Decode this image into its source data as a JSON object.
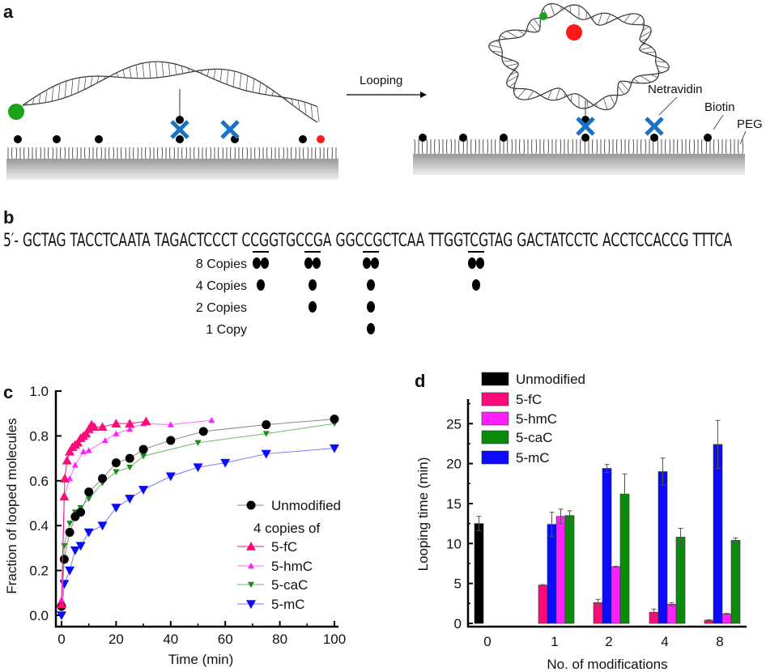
{
  "panels": {
    "a": {
      "label": "a",
      "arrow_label": "Looping",
      "netravidin": "Netravidin",
      "biotin": "Biotin",
      "peg": "PEG"
    },
    "b": {
      "label": "b",
      "sequence": "5′- GCTAG TACCTCAATA TAGACTCCCT CCGGTGCCGA GGCCGCTCAA TTGGTCGTAG GACTATCCTC ACCTCCACCG TTTCA",
      "copies": [
        {
          "label": "8 Copies",
          "sites": [
            2,
            2,
            2,
            2
          ]
        },
        {
          "label": "4 Copies",
          "sites": [
            1,
            1,
            1,
            1
          ]
        },
        {
          "label": "2 Copies",
          "sites": [
            0,
            1,
            1,
            0
          ]
        },
        {
          "label": "1 Copy",
          "sites": [
            0,
            0,
            1,
            0
          ]
        }
      ]
    },
    "c": {
      "label": "c"
    },
    "d": {
      "label": "d"
    }
  },
  "chart_data": [
    {
      "type": "line",
      "xlabel": "Time (min)",
      "ylabel": "Fraction of looped molecules",
      "xlim": [
        -2,
        100
      ],
      "ylim": [
        -0.05,
        1.0
      ],
      "xticks": [
        "0",
        "20",
        "40",
        "60",
        "80",
        "100"
      ],
      "yticks": [
        "0.0",
        "0.2",
        "0.4",
        "0.6",
        "0.8",
        "1.0"
      ],
      "legend_placement": "lower-right",
      "legend_subtitle": "4 copies of",
      "series": [
        {
          "name": "Unmodified",
          "color": "#000000",
          "line": "#888888",
          "marker": "circle",
          "x": [
            0,
            1,
            3,
            5,
            7,
            10,
            15,
            20,
            25,
            30,
            40,
            52,
            75,
            100
          ],
          "y": [
            0.04,
            0.25,
            0.37,
            0.44,
            0.46,
            0.55,
            0.61,
            0.68,
            0.7,
            0.74,
            0.78,
            0.82,
            0.85,
            0.875
          ]
        },
        {
          "name": "5-fC",
          "color": "#ff0a78",
          "line": "#ff0a78",
          "marker": "triangle-up",
          "x": [
            0,
            1,
            1.2,
            2,
            3,
            4,
            5,
            6,
            7,
            8,
            9,
            10,
            11,
            12,
            15,
            20,
            25,
            31
          ],
          "y": [
            0.05,
            0.53,
            0.61,
            0.69,
            0.73,
            0.75,
            0.76,
            0.77,
            0.79,
            0.8,
            0.81,
            0.83,
            0.85,
            0.84,
            0.84,
            0.855,
            0.855,
            0.865
          ]
        },
        {
          "name": "5-hmC",
          "color": "#ff20ff",
          "line": "#ff66ff",
          "marker": "triangle-up-small",
          "x": [
            0,
            1,
            3,
            5,
            8,
            10,
            16,
            20,
            25,
            30,
            40,
            55
          ],
          "y": [
            0.07,
            0.53,
            0.61,
            0.67,
            0.73,
            0.735,
            0.78,
            0.81,
            0.83,
            0.855,
            0.85,
            0.87
          ]
        },
        {
          "name": "5-caC",
          "color": "#1a8a1a",
          "line": "#66bb66",
          "marker": "triangle-down-small",
          "x": [
            0,
            1,
            3,
            5,
            7,
            10,
            15,
            20,
            25,
            30,
            50,
            75,
            100
          ],
          "y": [
            0.05,
            0.31,
            0.41,
            0.46,
            0.48,
            0.52,
            0.59,
            0.64,
            0.66,
            0.71,
            0.77,
            0.81,
            0.855
          ]
        },
        {
          "name": "5-mC",
          "color": "#0a0aff",
          "line": "#7777ff",
          "marker": "triangle-down",
          "x": [
            0,
            1,
            3,
            5,
            7,
            10,
            15,
            20,
            25,
            30,
            40,
            50,
            60,
            75,
            100
          ],
          "y": [
            0.0,
            0.14,
            0.2,
            0.29,
            0.31,
            0.37,
            0.4,
            0.48,
            0.52,
            0.56,
            0.62,
            0.66,
            0.68,
            0.72,
            0.745
          ]
        }
      ]
    },
    {
      "type": "bar",
      "xlabel": "No. of modifications",
      "ylabel": "Looping time (min)",
      "ylim": [
        0,
        28
      ],
      "yticks": [
        "0",
        "5",
        "10",
        "15",
        "20",
        "25"
      ],
      "categories": [
        "0",
        "1",
        "2",
        "4",
        "8"
      ],
      "legend_placement": "top-left",
      "series": [
        {
          "name": "Unmodified",
          "color": "#000000",
          "values": [
            12.5,
            null,
            null,
            null,
            null
          ],
          "errors": [
            0.9,
            null,
            null,
            null,
            null
          ]
        },
        {
          "name": "5-fC",
          "color": "#ff0a78",
          "values": [
            null,
            4.8,
            2.6,
            1.4,
            0.4
          ],
          "errors": [
            null,
            0.05,
            0.4,
            0.4,
            0.05
          ]
        },
        {
          "name": "5-hmC",
          "color": "#ff20ff",
          "values": [
            null,
            13.4,
            7.1,
            2.4,
            1.2
          ],
          "errors": [
            null,
            0.9,
            0.05,
            0.2,
            0.05
          ]
        },
        {
          "name": "5-caC",
          "color": "#0a8a0a",
          "values": [
            null,
            13.5,
            16.2,
            10.8,
            10.4
          ],
          "errors": [
            null,
            0.6,
            2.5,
            1.1,
            0.3
          ]
        },
        {
          "name": "5-mC",
          "color": "#0a0aff",
          "values": [
            null,
            12.4,
            19.4,
            19.0,
            22.4
          ],
          "errors": [
            null,
            1.5,
            0.5,
            1.7,
            3.0
          ]
        }
      ],
      "bar_order_in_group": [
        "5-fC",
        "5-mC",
        "5-hmC",
        "5-caC"
      ]
    }
  ]
}
